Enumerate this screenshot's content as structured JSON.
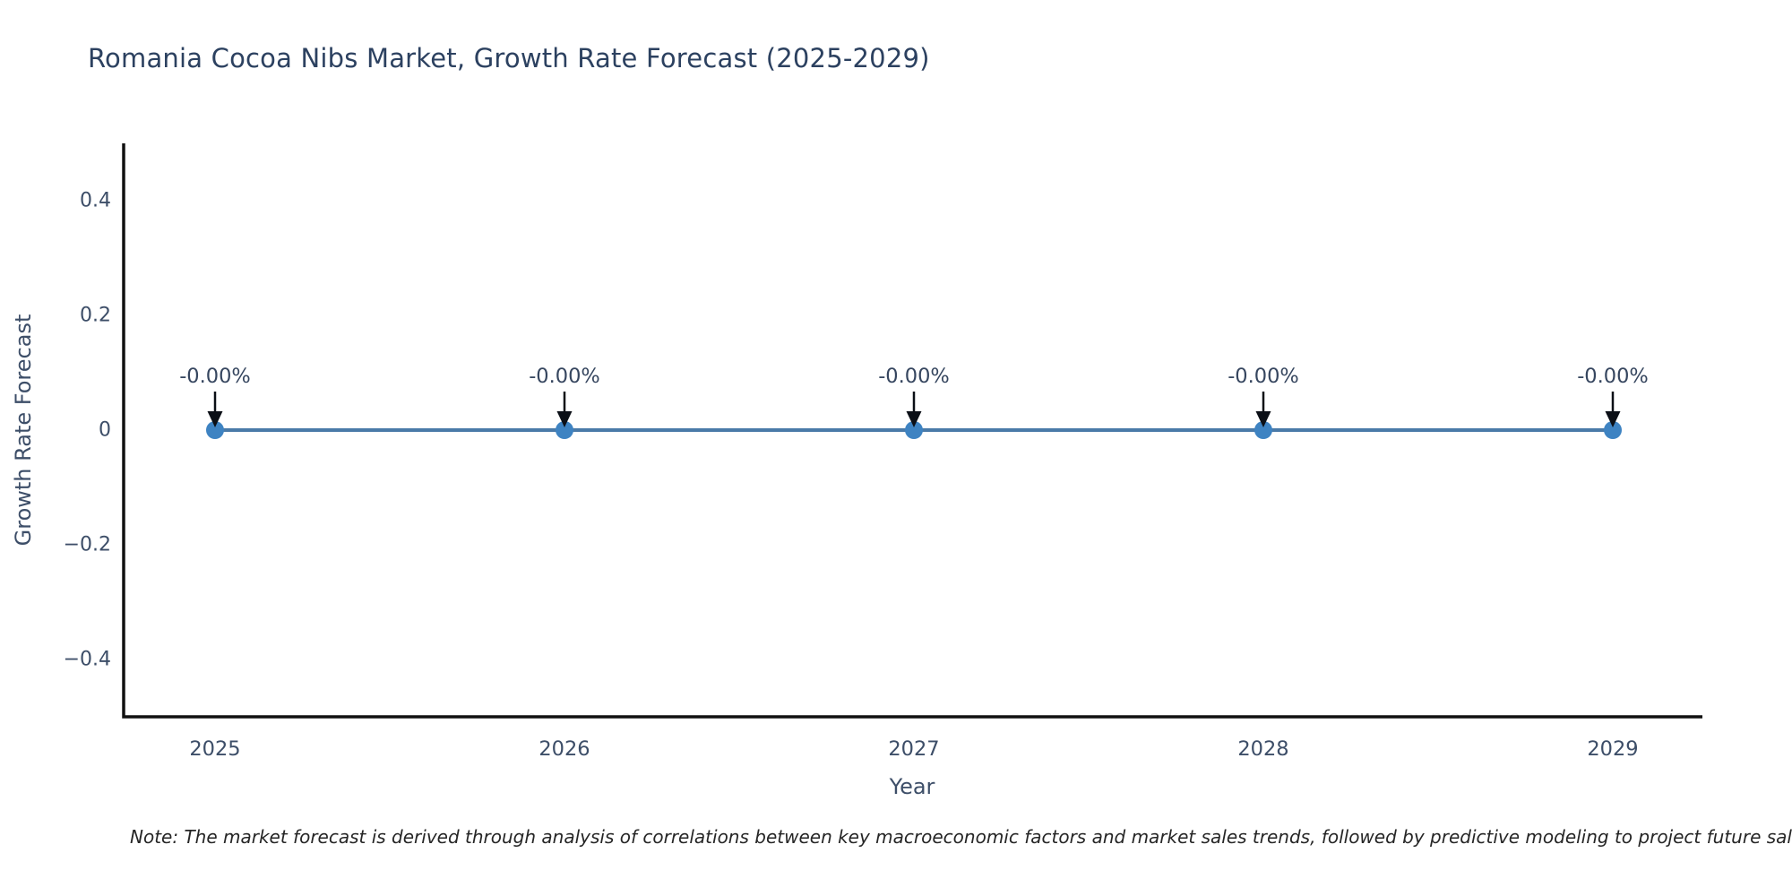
{
  "title": "Romania Cocoa Nibs Market, Growth Rate Forecast (2025-2029)",
  "note": "Note: The market forecast is derived through analysis of correlations between key macroeconomic factors and market sales trends, followed by predictive modeling to project future sales",
  "chart_data": {
    "type": "line",
    "title": "Romania Cocoa Nibs Market, Growth Rate Forecast (2025-2029)",
    "xlabel": "Year",
    "ylabel": "Growth Rate Forecast",
    "categories": [
      "2025",
      "2026",
      "2027",
      "2028",
      "2029"
    ],
    "x": [
      2025,
      2026,
      2027,
      2028,
      2029
    ],
    "values": [
      0,
      0,
      0,
      0,
      0
    ],
    "point_labels": [
      "-0.00%",
      "-0.00%",
      "-0.00%",
      "-0.00%",
      "-0.00%"
    ],
    "y_ticks": [
      0.4,
      0.2,
      0,
      -0.2,
      -0.4
    ],
    "y_tick_labels": [
      "0.4",
      "0.2",
      "0",
      "−0.2",
      "−0.4"
    ],
    "ylim": [
      -0.5,
      0.5
    ],
    "grid": false,
    "legend": "none",
    "colors": {
      "line": "#4a7aa8",
      "marker": "#3e83c2",
      "axis": "#111111",
      "tick_text": "#3d4e68",
      "annotation_text": "#36465f",
      "arrow": "#0b0f16",
      "title_text": "#2c4160"
    }
  }
}
